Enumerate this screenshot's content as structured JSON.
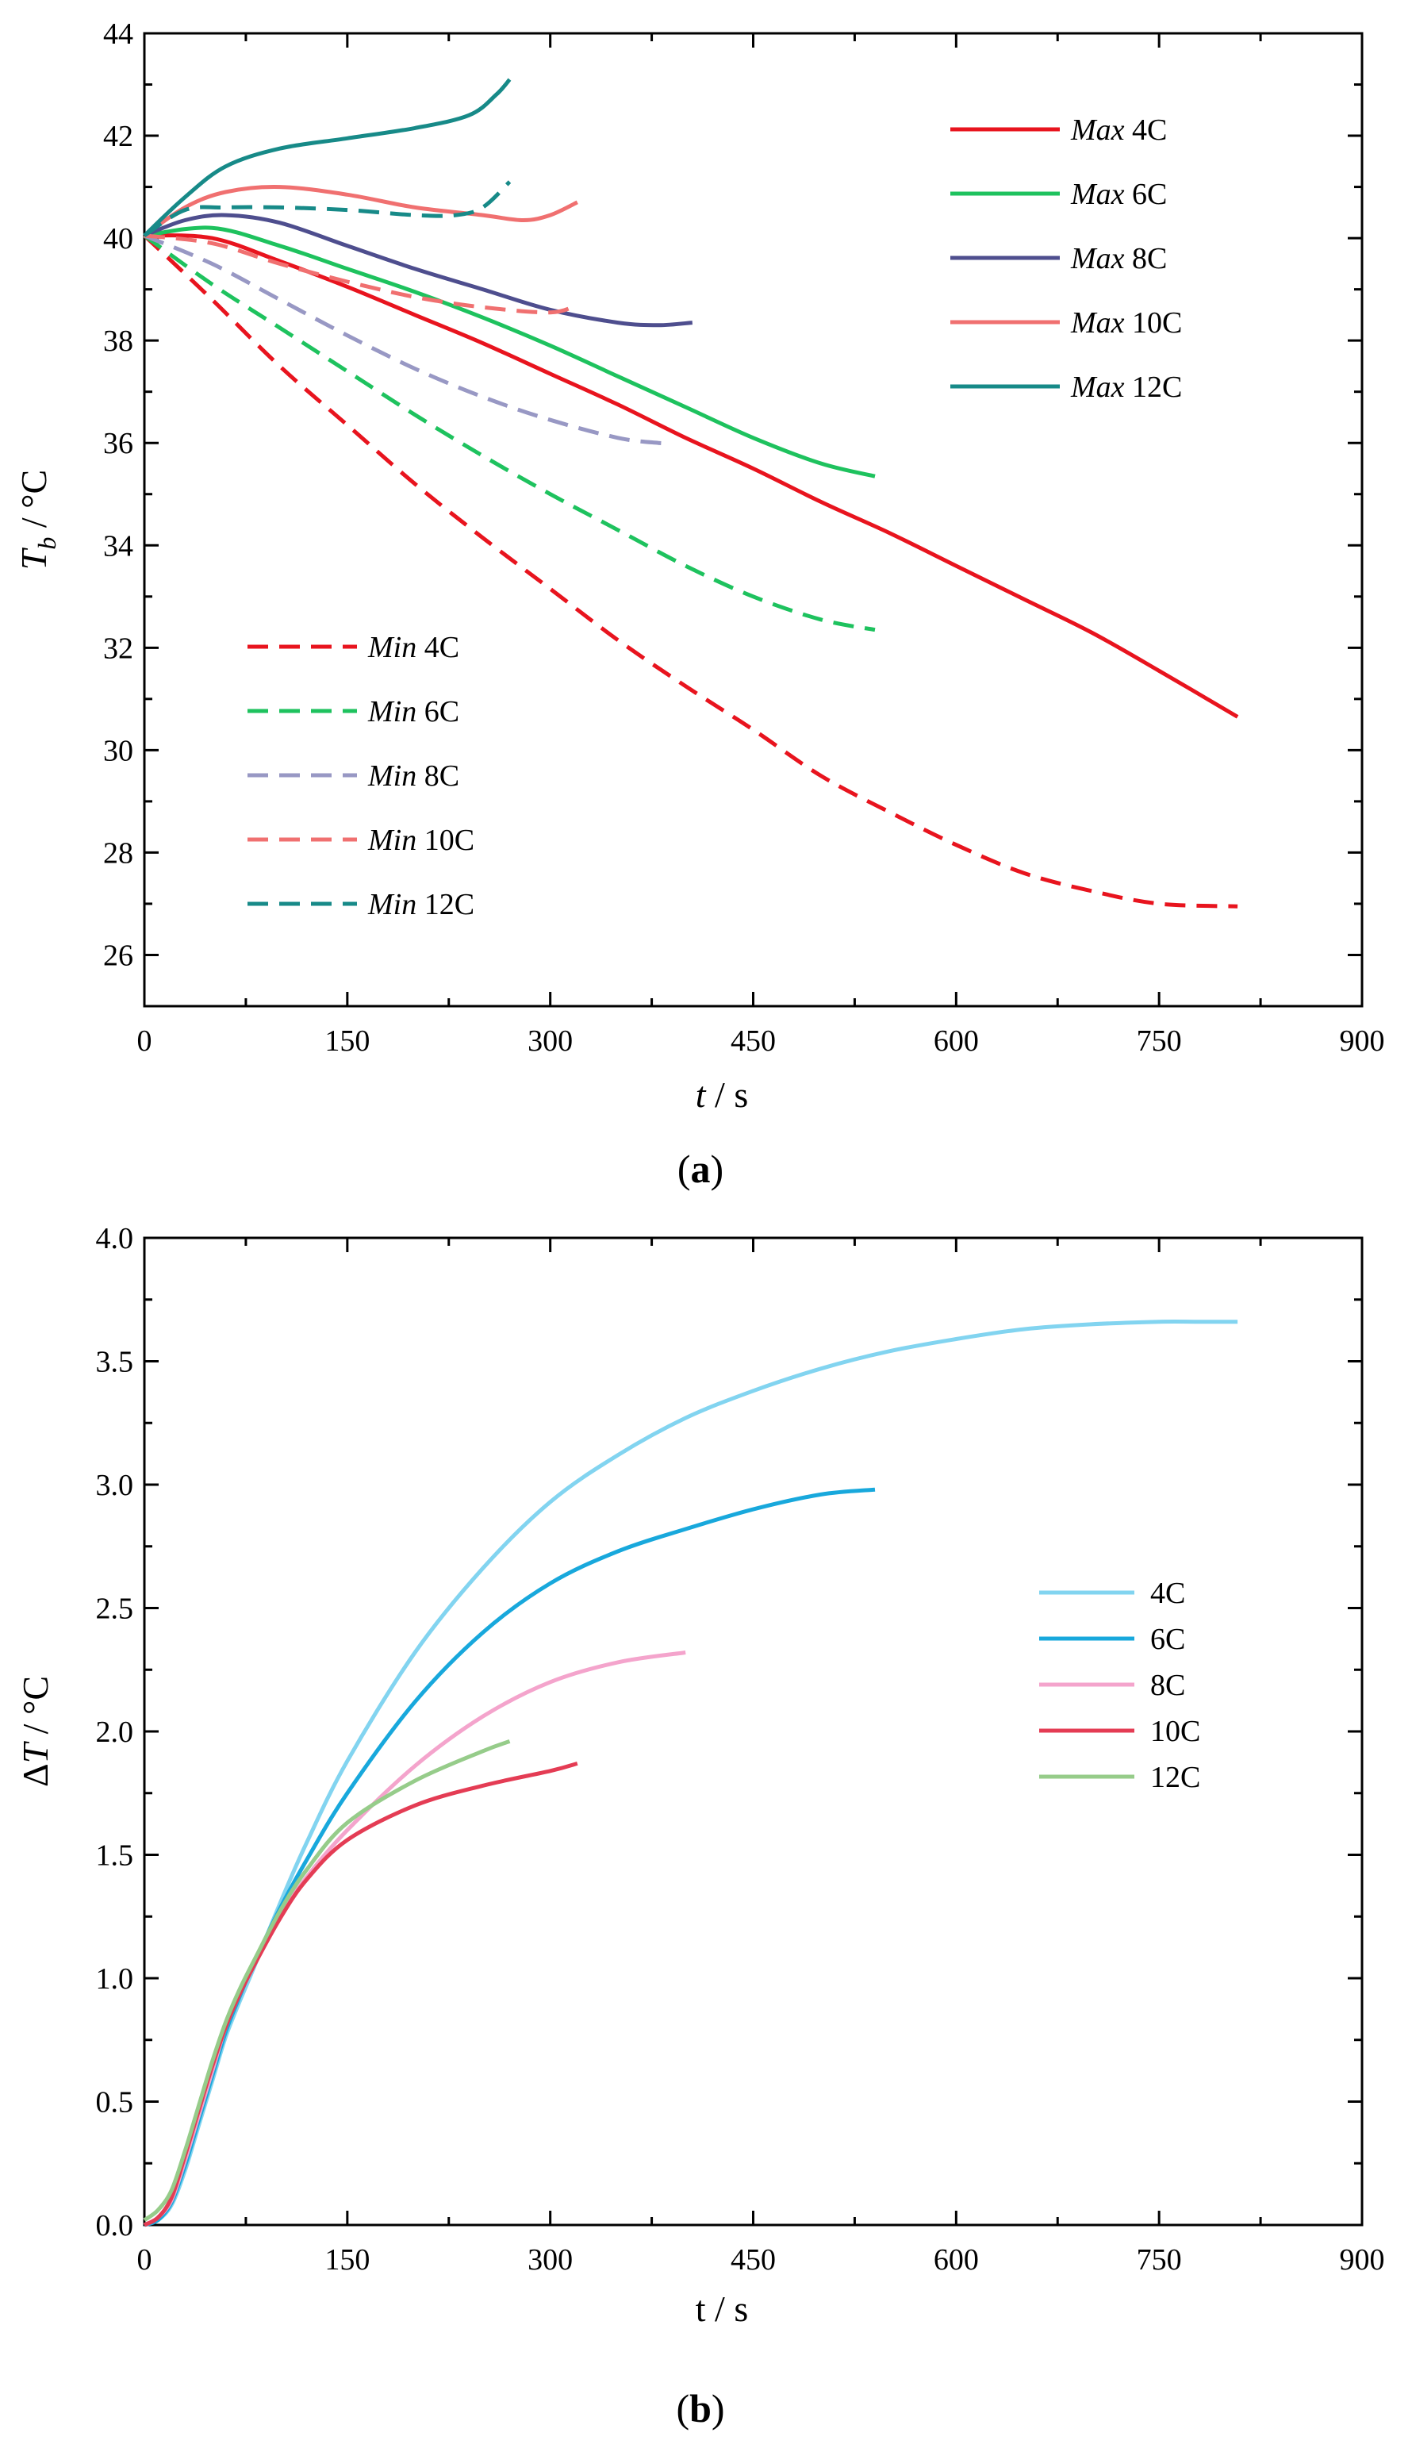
{
  "chart_data": [
    {
      "id": "a",
      "type": "line",
      "caption": {
        "open": "(",
        "letter": "a",
        "close": ")"
      },
      "xlabel": {
        "var": "t",
        "unit": " / s"
      },
      "ylabel": {
        "var": "T",
        "sub": "b",
        "unit": " / °C"
      },
      "xlim": [
        0,
        900
      ],
      "ylim": [
        25,
        44
      ],
      "xticks": [
        "0",
        "150",
        "300",
        "450",
        "600",
        "750",
        "900"
      ],
      "yticks": [
        "26",
        "28",
        "30",
        "32",
        "34",
        "36",
        "38",
        "40",
        "42",
        "44"
      ],
      "legend_max_placement": "top-right",
      "legend_min_placement": "bottom-left",
      "series": [
        {
          "prefix": "Max",
          "name": " 4C",
          "color": "#e8141e",
          "dash": false,
          "x": [
            0,
            50,
            100,
            150,
            200,
            250,
            300,
            350,
            400,
            450,
            500,
            550,
            600,
            650,
            700,
            750,
            808
          ],
          "y": [
            40.05,
            40.0,
            39.55,
            39.05,
            38.5,
            37.95,
            37.35,
            36.75,
            36.1,
            35.5,
            34.85,
            34.25,
            33.6,
            32.95,
            32.3,
            31.55,
            30.65
          ]
        },
        {
          "prefix": "Max",
          "name": " 6C",
          "color": "#1ec25e",
          "dash": false,
          "x": [
            0,
            50,
            100,
            150,
            200,
            250,
            300,
            350,
            400,
            450,
            500,
            540
          ],
          "y": [
            40.05,
            40.2,
            39.85,
            39.4,
            38.95,
            38.45,
            37.9,
            37.3,
            36.7,
            36.1,
            35.6,
            35.35
          ]
        },
        {
          "prefix": "Max",
          "name": " 8C",
          "color": "#4e4e8e",
          "dash": false,
          "x": [
            0,
            30,
            60,
            100,
            150,
            200,
            250,
            300,
            350,
            380,
            405
          ],
          "y": [
            40.05,
            40.35,
            40.45,
            40.3,
            39.85,
            39.4,
            39.0,
            38.6,
            38.35,
            38.3,
            38.35
          ]
        },
        {
          "prefix": "Max",
          "name": " 10C",
          "color": "#f07070",
          "dash": false,
          "x": [
            0,
            30,
            60,
            100,
            150,
            200,
            250,
            280,
            300,
            320
          ],
          "y": [
            40.05,
            40.6,
            40.9,
            41.0,
            40.85,
            40.6,
            40.45,
            40.35,
            40.45,
            40.7
          ]
        },
        {
          "prefix": "Max",
          "name": " 12C",
          "color": "#178a88",
          "dash": false,
          "x": [
            0,
            30,
            60,
            100,
            150,
            200,
            240,
            260,
            270
          ],
          "y": [
            40.05,
            40.8,
            41.4,
            41.75,
            41.95,
            42.15,
            42.4,
            42.8,
            43.1
          ]
        },
        {
          "prefix": "Min",
          "name": " 4C",
          "color": "#e8141e",
          "dash": true,
          "x": [
            0,
            50,
            100,
            150,
            200,
            250,
            300,
            350,
            400,
            450,
            500,
            550,
            600,
            650,
            700,
            750,
            808
          ],
          "y": [
            40.05,
            38.8,
            37.5,
            36.35,
            35.2,
            34.15,
            33.15,
            32.15,
            31.25,
            30.4,
            29.5,
            28.8,
            28.15,
            27.6,
            27.25,
            27.0,
            26.95
          ]
        },
        {
          "prefix": "Min",
          "name": " 6C",
          "color": "#1ec25e",
          "dash": true,
          "x": [
            0,
            50,
            100,
            150,
            200,
            250,
            300,
            350,
            400,
            450,
            500,
            540
          ],
          "y": [
            40.05,
            39.1,
            38.25,
            37.4,
            36.55,
            35.75,
            35.0,
            34.3,
            33.6,
            33.0,
            32.55,
            32.35
          ]
        },
        {
          "prefix": "Min",
          "name": " 8C",
          "color": "#9898c4",
          "dash": true,
          "x": [
            0,
            50,
            100,
            150,
            200,
            250,
            300,
            350,
            380,
            390
          ],
          "y": [
            40.05,
            39.5,
            38.8,
            38.1,
            37.45,
            36.9,
            36.45,
            36.1,
            36.0,
            36.0
          ]
        },
        {
          "prefix": "Min",
          "name": " 10C",
          "color": "#f07070",
          "dash": true,
          "x": [
            0,
            50,
            100,
            150,
            200,
            250,
            300,
            320
          ],
          "y": [
            40.05,
            39.9,
            39.5,
            39.15,
            38.85,
            38.65,
            38.55,
            38.7
          ]
        },
        {
          "prefix": "Min",
          "name": " 12C",
          "color": "#178a88",
          "dash": true,
          "x": [
            0,
            30,
            60,
            100,
            150,
            200,
            230,
            250,
            270
          ],
          "y": [
            40.05,
            40.55,
            40.6,
            40.6,
            40.55,
            40.45,
            40.45,
            40.6,
            41.1
          ]
        }
      ]
    },
    {
      "id": "b",
      "type": "line",
      "caption": {
        "open": "(",
        "letter": "b",
        "close": ")"
      },
      "xlabel": {
        "var": "t",
        "unit": " / s"
      },
      "ylabel": {
        "pre": "Δ",
        "var": "T",
        "unit": " / °C"
      },
      "xlim": [
        0,
        900
      ],
      "ylim": [
        0,
        4
      ],
      "xticks": [
        "0",
        "150",
        "300",
        "450",
        "600",
        "750",
        "900"
      ],
      "yticks": [
        "0.0",
        "0.5",
        "1.0",
        "1.5",
        "2.0",
        "2.5",
        "3.0",
        "3.5",
        "4.0"
      ],
      "legend_placement": "right",
      "series": [
        {
          "name": "4C",
          "color": "#82d4f0",
          "x": [
            0,
            10,
            20,
            30,
            40,
            50,
            60,
            70,
            80,
            100,
            120,
            150,
            200,
            250,
            300,
            350,
            400,
            450,
            500,
            550,
            600,
            650,
            700,
            750,
            780,
            808
          ],
          "y": [
            0.0,
            0.02,
            0.08,
            0.22,
            0.4,
            0.58,
            0.76,
            0.9,
            1.03,
            1.3,
            1.55,
            1.88,
            2.32,
            2.66,
            2.93,
            3.12,
            3.27,
            3.38,
            3.47,
            3.54,
            3.59,
            3.63,
            3.65,
            3.66,
            3.66,
            3.66
          ]
        },
        {
          "name": "6C",
          "color": "#18a8dc",
          "x": [
            0,
            10,
            20,
            30,
            40,
            50,
            60,
            70,
            80,
            100,
            120,
            150,
            200,
            250,
            300,
            350,
            400,
            450,
            500,
            540
          ],
          "y": [
            0.0,
            0.02,
            0.09,
            0.24,
            0.42,
            0.6,
            0.78,
            0.92,
            1.05,
            1.28,
            1.48,
            1.75,
            2.12,
            2.4,
            2.6,
            2.73,
            2.82,
            2.9,
            2.96,
            2.98
          ]
        },
        {
          "name": "8C",
          "color": "#f4a4cc",
          "x": [
            0,
            10,
            20,
            30,
            40,
            50,
            60,
            70,
            80,
            100,
            120,
            150,
            200,
            250,
            300,
            350,
            400
          ],
          "y": [
            0.0,
            0.03,
            0.1,
            0.26,
            0.44,
            0.62,
            0.8,
            0.93,
            1.05,
            1.25,
            1.41,
            1.6,
            1.86,
            2.06,
            2.2,
            2.28,
            2.32
          ]
        },
        {
          "name": "10C",
          "color": "#e43c54",
          "x": [
            0,
            10,
            20,
            30,
            40,
            50,
            60,
            70,
            80,
            100,
            120,
            150,
            200,
            250,
            300,
            320
          ],
          "y": [
            0.0,
            0.03,
            0.11,
            0.28,
            0.46,
            0.64,
            0.8,
            0.93,
            1.04,
            1.24,
            1.4,
            1.56,
            1.7,
            1.78,
            1.84,
            1.87
          ]
        },
        {
          "name": "12C",
          "color": "#96cc8a",
          "x": [
            0,
            10,
            20,
            30,
            40,
            50,
            60,
            70,
            80,
            100,
            120,
            150,
            200,
            250,
            270
          ],
          "y": [
            0.02,
            0.06,
            0.14,
            0.3,
            0.48,
            0.66,
            0.82,
            0.95,
            1.06,
            1.27,
            1.44,
            1.63,
            1.8,
            1.92,
            1.96
          ]
        }
      ]
    }
  ]
}
